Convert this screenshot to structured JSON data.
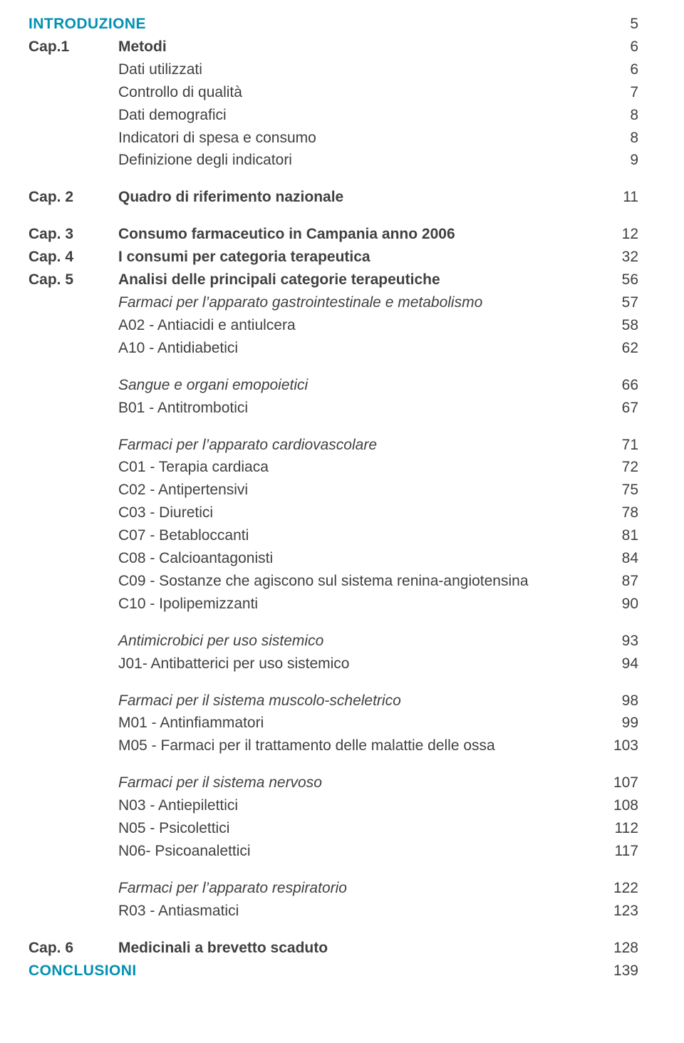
{
  "colors": {
    "accent": "#0091b3",
    "text": "#404042",
    "bg": "#ffffff"
  },
  "intro": {
    "label": "INTRODUZIONE",
    "page": "5"
  },
  "cap1": {
    "label": "Cap.1",
    "title": "Metodi",
    "page": "6",
    "items": [
      {
        "t": "Dati utilizzati",
        "p": "6"
      },
      {
        "t": "Controllo di qualità",
        "p": "7"
      },
      {
        "t": "Dati demografici",
        "p": "8"
      },
      {
        "t": "Indicatori di spesa e consumo",
        "p": "8"
      },
      {
        "t": "Definizione degli indicatori",
        "p": "9"
      }
    ]
  },
  "cap2": {
    "label": "Cap. 2",
    "title": "Quadro di riferimento nazionale",
    "page": "11"
  },
  "cap3": {
    "label": "Cap. 3",
    "title": "Consumo farmaceutico in Campania anno 2006",
    "page": "12"
  },
  "cap4": {
    "label": "Cap. 4",
    "title": "I consumi per categoria terapeutica",
    "page": "32"
  },
  "cap5": {
    "label": "Cap. 5",
    "title": "Analisi delle principali categorie terapeutiche",
    "page": "56",
    "sectA": {
      "head": {
        "t": "Farmaci per l’apparato gastrointestinale e metabolismo",
        "p": "57"
      },
      "items": [
        {
          "t": "A02 - Antiacidi e antiulcera",
          "p": "58"
        },
        {
          "t": "A10 - Antidiabetici",
          "p": "62"
        }
      ]
    },
    "sectB": {
      "head": {
        "t": "Sangue e organi emopoietici",
        "p": "66"
      },
      "items": [
        {
          "t": "B01 - Antitrombotici",
          "p": "67"
        }
      ]
    },
    "sectC": {
      "head": {
        "t": "Farmaci per l’apparato cardiovascolare",
        "p": "71"
      },
      "items": [
        {
          "t": "C01 - Terapia cardiaca",
          "p": "72"
        },
        {
          "t": "C02 - Antipertensivi",
          "p": "75"
        },
        {
          "t": "C03 - Diuretici",
          "p": "78"
        },
        {
          "t": "C07 - Betabloccanti",
          "p": "81"
        },
        {
          "t": "C08 - Calcioantagonisti",
          "p": "84"
        },
        {
          "t": "C09 - Sostanze che agiscono sul sistema renina-angiotensina",
          "p": "87"
        },
        {
          "t": "C10 - Ipolipemizzanti",
          "p": "90"
        }
      ]
    },
    "sectJ": {
      "head": {
        "t": "Antimicrobici per uso sistemico",
        "p": "93"
      },
      "items": [
        {
          "t": "J01- Antibatterici per uso sistemico",
          "p": "94"
        }
      ]
    },
    "sectM": {
      "head": {
        "t": "Farmaci per il sistema muscolo-scheletrico",
        "p": "98"
      },
      "items": [
        {
          "t": "M01 - Antinfiammatori",
          "p": "99"
        },
        {
          "t": "M05 - Farmaci per il trattamento delle malattie delle ossa",
          "p": "103"
        }
      ]
    },
    "sectN": {
      "head": {
        "t": "Farmaci per il sistema nervoso",
        "p": "107"
      },
      "items": [
        {
          "t": "N03 - Antiepilettici",
          "p": "108"
        },
        {
          "t": "N05 - Psicolettici",
          "p": "112"
        },
        {
          "t": "N06- Psicoanalettici",
          "p": "117"
        }
      ]
    },
    "sectR": {
      "head": {
        "t": "Farmaci per l’apparato respiratorio",
        "p": "122"
      },
      "items": [
        {
          "t": "R03 - Antiasmatici",
          "p": "123"
        }
      ]
    }
  },
  "cap6": {
    "label": "Cap. 6",
    "title": "Medicinali a brevetto scaduto",
    "page": "128"
  },
  "conclusioni": {
    "label": "CONCLUSIONI",
    "page": "139"
  }
}
